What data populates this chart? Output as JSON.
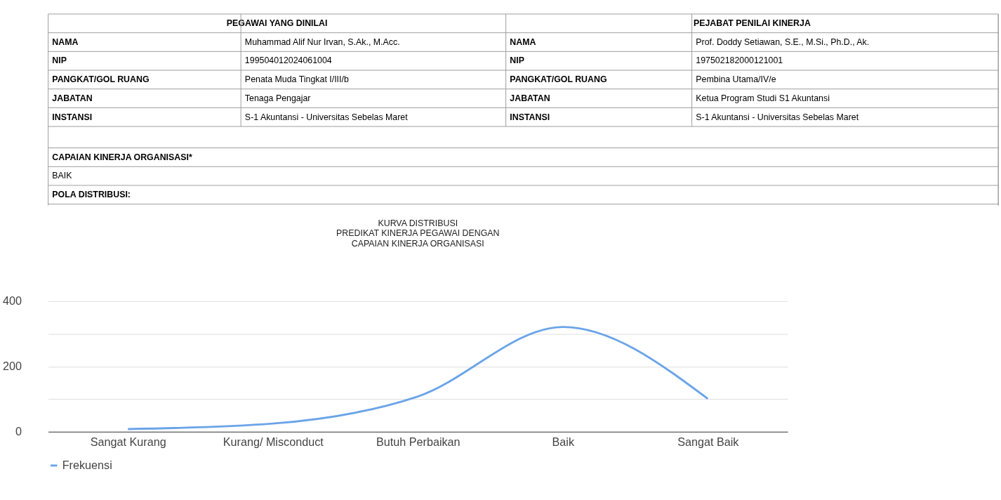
{
  "chart_data": {
    "type": "line",
    "title": "KURVA DISTRIBUSI\nPREDIKAT KINERJA PEGAWAI DENGAN\nCAPAIAN KINERJA ORGANISASI",
    "categories": [
      "Sangat Kurang",
      "Kurang/ Misconduct",
      "Butuh Perbaikan",
      "Baik",
      "Sangat Baik"
    ],
    "series": [
      {
        "name": "Frekuensi",
        "color": "#6aa4e8",
        "values": [
          8,
          25,
          108,
          321,
          101
        ]
      }
    ],
    "ylim": [
      0,
      400
    ],
    "yticks": [
      0,
      {
        "value": 100,
        "label": null
      },
      200,
      {
        "value": 300,
        "label": null
      },
      400
    ],
    "grid": "y",
    "legend": "bottom",
    "marker": "none",
    "line_style": "solid",
    "annotations": [
      "PEGAWAI YANG DINILAI",
      "PEJABAT PENILAI KINERJA",
      "NAMA",
      "Muhammad Alif Nur Irvan, S.Ak., M.Acc.",
      "NAMA",
      "Prof. Doddy Setiawan, S.E., M.Si., Ph.D., Ak.",
      "NIP",
      "199504012024061004",
      "NIP",
      "197502182000121001",
      "PANGKAT/GOL RUANG",
      "Penata Muda Tingkat I/III/b",
      "PANGKAT/GOL RUANG",
      "Pembina Utama/IV/e",
      "JABATAN",
      "Tenaga Pengajar",
      "JABATAN",
      "Ketua Program Studi S1 Akuntansi",
      "INSTANSI",
      "S-1 Akuntansi - Universitas Sebelas Maret",
      "INSTANSI",
      "S-1 Akuntansi - Universitas Sebelas Maret",
      "CAPAIAN KINERJA ORGANISASI*",
      "BAIK",
      "POLA DISTRIBUSI:"
    ]
  }
}
